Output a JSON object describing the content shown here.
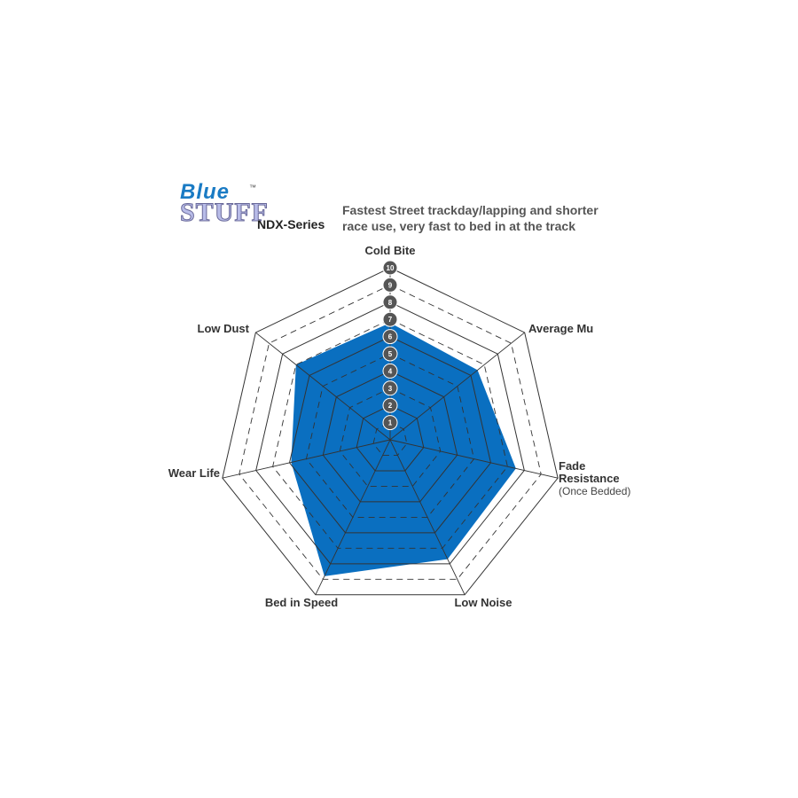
{
  "logo": {
    "text": "Blue Stuff",
    "tm": "™"
  },
  "series_label": "NDX-Series",
  "description": "Fastest Street trackday/lapping and shorter race use, very fast to bed in at the track",
  "chart_data": {
    "type": "radar",
    "axes": [
      "Cold Bite",
      "Average Mu",
      "Fade Resistance",
      "Low Noise",
      "Bed in Speed",
      "Wear Life",
      "Low Dust"
    ],
    "axis_sublabels": {
      "Fade Resistance": "(Once Bedded)"
    },
    "values": [
      6.8,
      6.5,
      7.5,
      7.7,
      8.8,
      5.9,
      7.0
    ],
    "range": [
      0,
      10
    ],
    "ticks": [
      "1",
      "2",
      "3",
      "4",
      "5",
      "6",
      "7",
      "8",
      "9",
      "10"
    ],
    "fill_color": "#0a6fc0",
    "grid_color": "#333333",
    "tick_badge_color": "#555555"
  }
}
